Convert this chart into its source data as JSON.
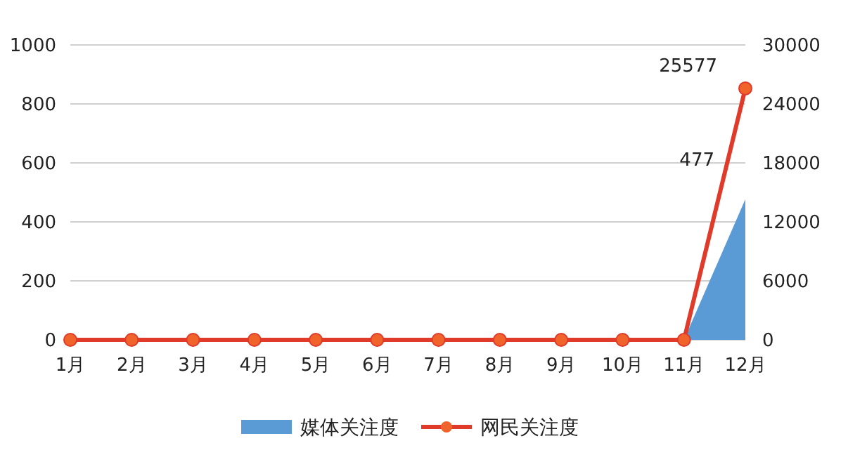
{
  "chart_data": {
    "type": "area",
    "categories": [
      "1月",
      "2月",
      "3月",
      "4月",
      "5月",
      "6月",
      "7月",
      "8月",
      "9月",
      "10月",
      "11月",
      "12月"
    ],
    "series": [
      {
        "name": "媒体关注度",
        "color": "#5b9bd5",
        "values": [
          0,
          0,
          0,
          0,
          0,
          0,
          0,
          0,
          0,
          0,
          0,
          477
        ],
        "value_labels": [
          null,
          null,
          null,
          null,
          null,
          null,
          null,
          null,
          null,
          null,
          null,
          "477"
        ]
      },
      {
        "name": "网民关注度",
        "type": "line",
        "axis": "y2",
        "color": "#e03a2a",
        "marker": "circle",
        "values": [
          0,
          0,
          0,
          0,
          0,
          0,
          0,
          0,
          0,
          0,
          0,
          25577
        ],
        "value_labels": [
          null,
          null,
          null,
          null,
          null,
          null,
          null,
          null,
          null,
          null,
          null,
          "25577"
        ]
      }
    ],
    "ylim": [
      0,
      1000
    ],
    "yticks": [
      0,
      200,
      400,
      600,
      800,
      1000
    ],
    "y2lim": [
      0,
      30000
    ],
    "y2ticks": [
      0,
      6000,
      12000,
      18000,
      24000,
      30000
    ],
    "grid": "y",
    "legend": "bottom"
  }
}
